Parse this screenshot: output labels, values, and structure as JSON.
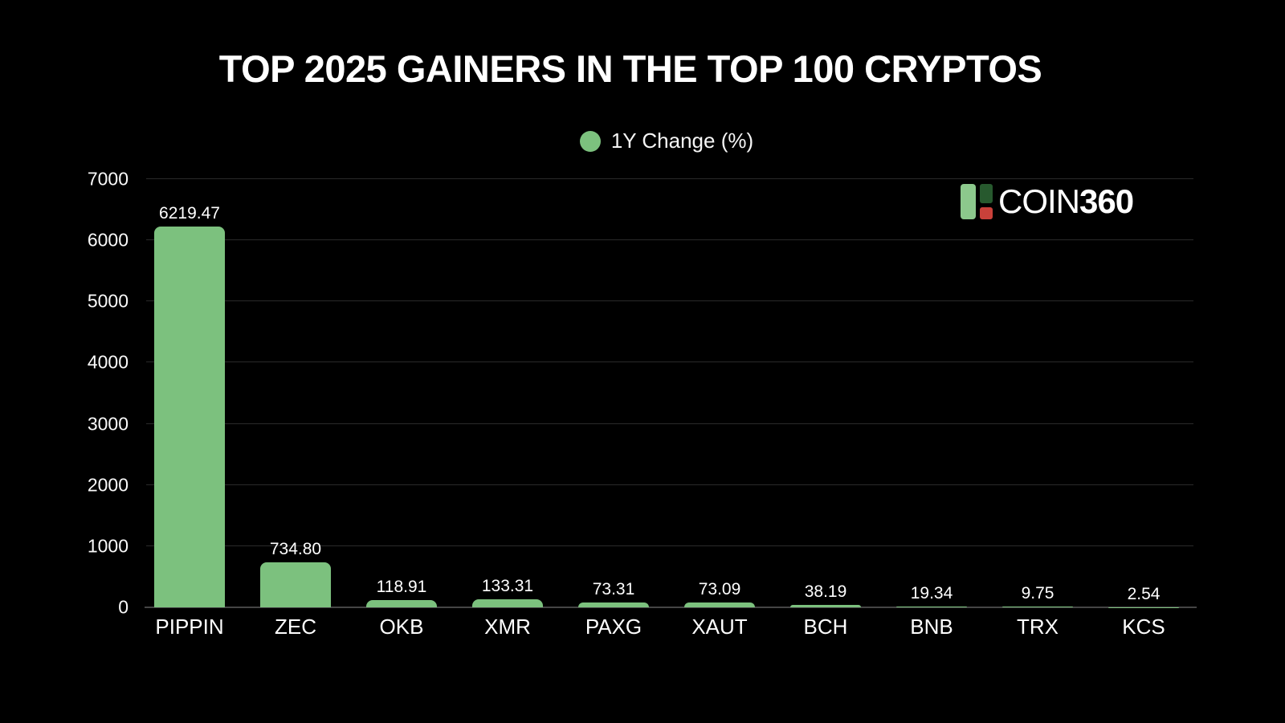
{
  "title": "TOP 2025 GAINERS IN THE TOP 100 CRYPTOS",
  "legend": {
    "label": "1Y Change (%)"
  },
  "logo": {
    "text_regular": "COIN",
    "text_bold": "360"
  },
  "colors": {
    "background": "#000000",
    "bar": "#7cc17e",
    "text": "#ffffff",
    "gridline": "#2a2a2a",
    "axis_line": "#454545",
    "logo_light_green": "#8cc88c",
    "logo_dark_green": "#27592e",
    "logo_red": "#c9413a"
  },
  "chart_data": {
    "type": "bar",
    "title": "TOP 2025 GAINERS IN THE TOP 100 CRYPTOS",
    "categories": [
      "PIPPIN",
      "ZEC",
      "OKB",
      "XMR",
      "PAXG",
      "XAUT",
      "BCH",
      "BNB",
      "TRX",
      "KCS"
    ],
    "series": [
      {
        "name": "1Y Change (%)",
        "values": [
          6219.47,
          734.8,
          118.91,
          133.31,
          73.31,
          73.09,
          38.19,
          19.34,
          9.75,
          2.54
        ]
      }
    ],
    "xlabel": "",
    "ylabel": "",
    "ylim": [
      0,
      7000
    ],
    "ytick_step": 1000,
    "grid": true,
    "legend_position": "top-center",
    "value_labels": true,
    "value_label_decimals": 2
  }
}
